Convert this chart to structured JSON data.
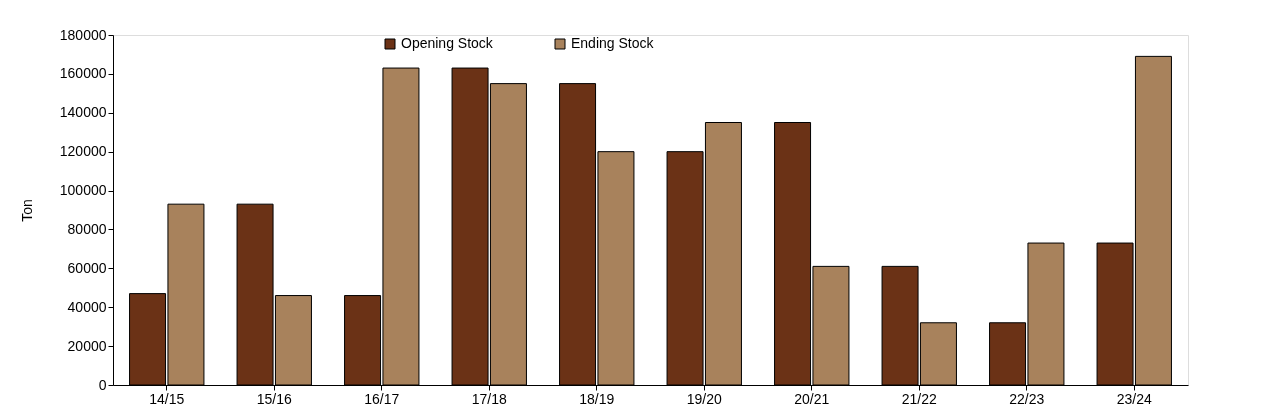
{
  "chart_data": {
    "type": "bar",
    "ylabel": "Ton",
    "categories": [
      "14/15",
      "15/16",
      "16/17",
      "17/18",
      "18/19",
      "19/20",
      "20/21",
      "21/22",
      "22/23",
      "23/24"
    ],
    "series": [
      {
        "name": "Opening Stock",
        "color": "#6b3216",
        "values": [
          47000,
          93000,
          46000,
          163000,
          155000,
          120000,
          135000,
          61000,
          32000,
          73000
        ]
      },
      {
        "name": "Ending Stock",
        "color": "#a8825c",
        "values": [
          93000,
          46000,
          163000,
          155000,
          120000,
          135000,
          61000,
          32000,
          73000,
          169000
        ]
      }
    ],
    "ylim": [
      0,
      180000
    ],
    "yticks": [
      0,
      20000,
      40000,
      60000,
      80000,
      100000,
      120000,
      140000,
      160000,
      180000
    ],
    "grid": false,
    "legend": "top"
  }
}
